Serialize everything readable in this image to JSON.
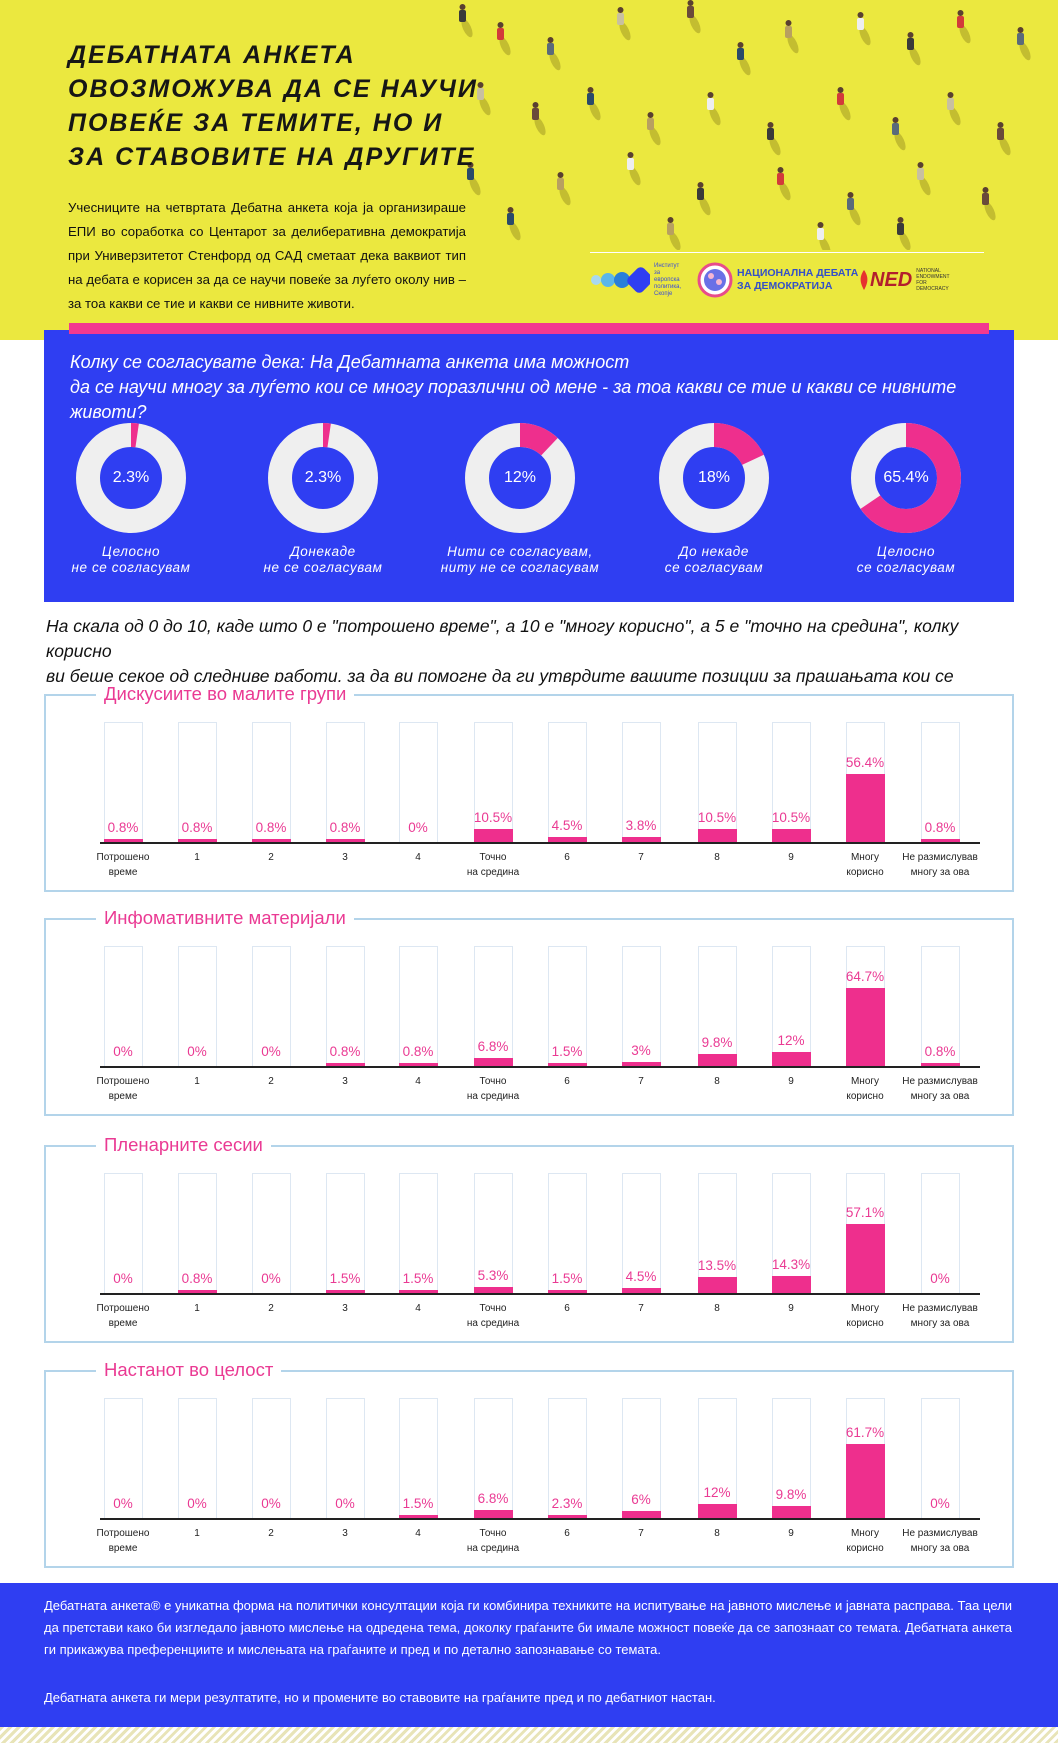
{
  "header": {
    "title": "ДЕБАТНАТА АНКЕТА\nОВОЗМОЖУВА ДА СЕ НАУЧИ\nПОВЕЌЕ ЗА ТЕМИТЕ, НО И\nЗА СТАВОВИТЕ НА ДРУГИТЕ",
    "intro": "Учесниците на четвртата Дебатна анкета која ја организираше ЕПИ во соработка со Центарот за делиберативна демократија при Универзитетот Стенфорд од САД сметаат дека ваквиот тип на дебата е корисен за да се научи повеќе за луѓето околу нив – за тоа какви се тие и какви се нивните животи.",
    "logos": {
      "epi": "Институт\nза\nевропска\nполитика,\nСкопје",
      "nd": "НАЦИОНАЛНА ДЕБАТА\nЗА ДЕМОКРАТИЈА",
      "ned_mark": "NED",
      "ned_small": "NATIONAL\nENDOWMENT\nFOR\nDEMOCRACY"
    }
  },
  "colors": {
    "yellow": "#ebe83f",
    "blue": "#2f3ef2",
    "pink": "#ee2f8d",
    "ring": "#efefef"
  },
  "donut_section": {
    "question": "Колку се согласувате дека: На Дебатната анкета има можност\nда се научи многу за луѓето кои се многу поразлични од мене - за тоа какви се тие и какви се нивните животи?"
  },
  "question2": "На скала од 0 до 10, каде што 0 е \"потрошено време\", а 10 е \"многу корисно\", а 5 е \"точно на средина\", колку корисно\nви беше секое од следниве работи, за да ви помогне да ги утврдите вашите позиции за прашањата кои се дискутираа?",
  "chart_data": [
    {
      "type": "pie",
      "style": "donut",
      "categories": [
        "Целосно\nне се согласувам",
        "Донекаде\nне се согласувам",
        "Нити се согласувам,\nниту не се согласувам",
        "До некаде\nсе согласувам",
        "Целосно\nсе согласувам"
      ],
      "values": [
        2.3,
        2.3,
        12,
        18,
        65.4
      ],
      "labels": [
        "2.3%",
        "2.3%",
        "12%",
        "18%",
        "65.4%"
      ]
    },
    {
      "type": "bar",
      "title": "Дискусиите во малите групи",
      "categories": [
        "Потрошено\nвреме",
        "1",
        "2",
        "3",
        "4",
        "Точно\nна средина",
        "6",
        "7",
        "8",
        "9",
        "Многу\nкорисно",
        "Не размислував\nмногу за ова"
      ],
      "values": [
        0.8,
        0.8,
        0.8,
        0.8,
        0,
        10.5,
        4.5,
        3.8,
        10.5,
        10.5,
        56.4,
        0.8
      ],
      "labels": [
        "0.8%",
        "0.8%",
        "0.8%",
        "0.8%",
        "0%",
        "10.5%",
        "4.5%",
        "3.8%",
        "10.5%",
        "10.5%",
        "56.4%",
        "0.8%"
      ],
      "ylim": [
        0,
        100
      ]
    },
    {
      "type": "bar",
      "title": "Инфомативните материјали",
      "categories": [
        "Потрошено\nвреме",
        "1",
        "2",
        "3",
        "4",
        "Точно\nна средина",
        "6",
        "7",
        "8",
        "9",
        "Многу\nкорисно",
        "Не размислував\nмногу за ова"
      ],
      "values": [
        0,
        0,
        0,
        0.8,
        0.8,
        6.8,
        1.5,
        3,
        9.8,
        12,
        64.7,
        0.8
      ],
      "labels": [
        "0%",
        "0%",
        "0%",
        "0.8%",
        "0.8%",
        "6.8%",
        "1.5%",
        "3%",
        "9.8%",
        "12%",
        "64.7%",
        "0.8%"
      ],
      "ylim": [
        0,
        100
      ]
    },
    {
      "type": "bar",
      "title": "Пленарните сесии",
      "categories": [
        "Потрошено\nвреме",
        "1",
        "2",
        "3",
        "4",
        "Точно\nна средина",
        "6",
        "7",
        "8",
        "9",
        "Многу\nкорисно",
        "Не размислував\nмногу за ова"
      ],
      "values": [
        0,
        0.8,
        0,
        1.5,
        1.5,
        5.3,
        1.5,
        4.5,
        13.5,
        14.3,
        57.1,
        0
      ],
      "labels": [
        "0%",
        "0.8%",
        "0%",
        "1.5%",
        "1.5%",
        "5.3%",
        "1.5%",
        "4.5%",
        "13.5%",
        "14.3%",
        "57.1%",
        "0%"
      ],
      "ylim": [
        0,
        100
      ]
    },
    {
      "type": "bar",
      "title": "Настанот во целост",
      "categories": [
        "Потрошено\nвреме",
        "1",
        "2",
        "3",
        "4",
        "Точно\nна средина",
        "6",
        "7",
        "8",
        "9",
        "Многу\nкорисно",
        "Не размислував\nмногу за ова"
      ],
      "values": [
        0,
        0,
        0,
        0,
        1.5,
        6.8,
        2.3,
        6,
        12,
        9.8,
        61.7,
        0
      ],
      "labels": [
        "0%",
        "0%",
        "0%",
        "0%",
        "1.5%",
        "6.8%",
        "2.3%",
        "6%",
        "12%",
        "9.8%",
        "61.7%",
        "0%"
      ],
      "ylim": [
        0,
        100
      ]
    }
  ],
  "footer": {
    "p1": "Дебатната анкета® е уникатна форма на политички консултации која ги комбинира техниките на испитување на јавното мислење и јавната расправа. Таа цели да претстави како би изгледало јавното мислење на одредена тема, доколку граѓаните би имале можност повеќе да се запознаат со темата. Дебатната анкета ги прикажува преференциите и мислењата на граѓаните и пред и по детално запознавање со темата.",
    "p2": "Дебатната анкета ги мери резултатите, но и промените во ставовите на граѓаните пред и по дебатниот настан."
  }
}
